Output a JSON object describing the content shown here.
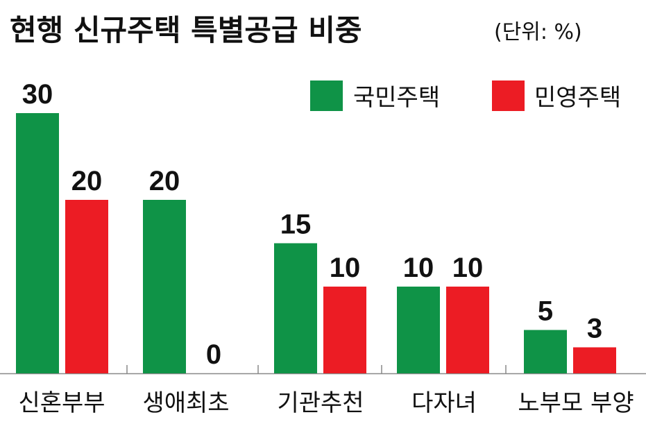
{
  "chart_data": {
    "type": "bar",
    "title": "현행 신규주택 특별공급 비중",
    "unit": "(단위: %)",
    "categories": [
      "신혼부부",
      "생애최초",
      "기관추천",
      "다자녀",
      "노부모 부양"
    ],
    "series": [
      {
        "name": "국민주택",
        "color": "#0f9347",
        "values": [
          30,
          20,
          15,
          10,
          5
        ]
      },
      {
        "name": "민영주택",
        "color": "#ec1c24",
        "values": [
          20,
          0,
          10,
          10,
          3
        ]
      }
    ],
    "ylim": [
      0,
      30
    ],
    "grid": false,
    "legend_position": "top-right",
    "xlabel": "",
    "ylabel": ""
  }
}
